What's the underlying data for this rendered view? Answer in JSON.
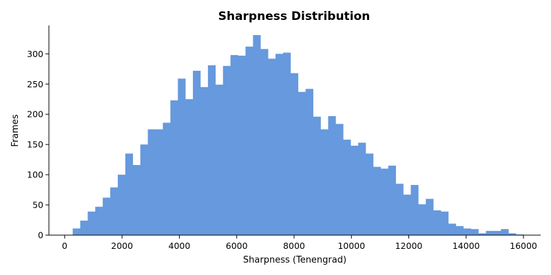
{
  "chart_data": {
    "type": "bar",
    "title": "Sharpness Distribution",
    "xlabel": "Sharpness (Tenengrad)",
    "ylabel": "Frames",
    "xlim": [
      -550,
      16600
    ],
    "ylim": [
      0,
      347
    ],
    "xticks": [
      0,
      2000,
      4000,
      6000,
      8000,
      10000,
      12000,
      14000,
      16000
    ],
    "yticks": [
      0,
      50,
      100,
      150,
      200,
      250,
      300
    ],
    "bar_color": "#6699dd",
    "bin_start": 280,
    "bin_width": 262,
    "values": [
      11,
      24,
      39,
      47,
      62,
      79,
      100,
      135,
      116,
      150,
      175,
      175,
      186,
      223,
      259,
      225,
      272,
      245,
      281,
      249,
      280,
      298,
      297,
      312,
      331,
      308,
      292,
      300,
      302,
      268,
      237,
      242,
      196,
      175,
      197,
      184,
      158,
      148,
      153,
      135,
      113,
      110,
      115,
      85,
      67,
      83,
      51,
      60,
      41,
      39,
      19,
      15,
      11,
      10,
      3,
      7,
      7,
      10,
      3,
      1
    ],
    "grid": false,
    "legend": "none"
  }
}
